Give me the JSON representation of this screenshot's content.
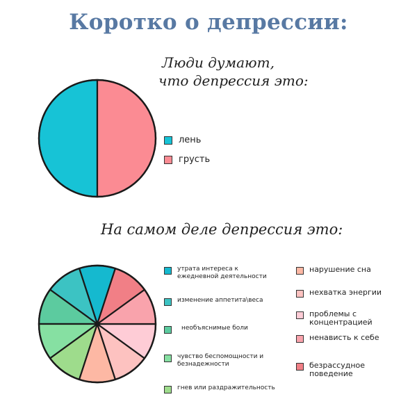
{
  "title": "Коротко о депрессии:",
  "chart_data": [
    {
      "type": "pie",
      "title_lines": [
        "Люди думают,",
        "что депрессия это:"
      ],
      "categories": [
        "лень",
        "грусть"
      ],
      "values": [
        50,
        50
      ],
      "colors": [
        "#17c3d6",
        "#fb8b93"
      ],
      "legend_position": "right"
    },
    {
      "type": "pie",
      "title": "На самом деле депрессия это:",
      "categories": [
        "утрата интереса к\nежедневной деятельности",
        "изменение аппетита\\веса",
        "необъяснимые боли",
        "чувство беспомощности и\nбезнадежности",
        "гнев или раздражительность",
        "нарушение сна",
        "нехватка энергии",
        "проблемы с\nконцентрацией",
        "ненависть к себе",
        "безрассудное\nповедение"
      ],
      "values": [
        10,
        10,
        10,
        10,
        10,
        10,
        10,
        10,
        10,
        10
      ],
      "colors": [
        "#15b9cf",
        "#3cc3c3",
        "#5ccb9f",
        "#86e0a2",
        "#9edc8c",
        "#fdb8a4",
        "#fdc2c0",
        "#feccd6",
        "#f9a3ac",
        "#f17f86"
      ],
      "legend_position": "right"
    }
  ]
}
